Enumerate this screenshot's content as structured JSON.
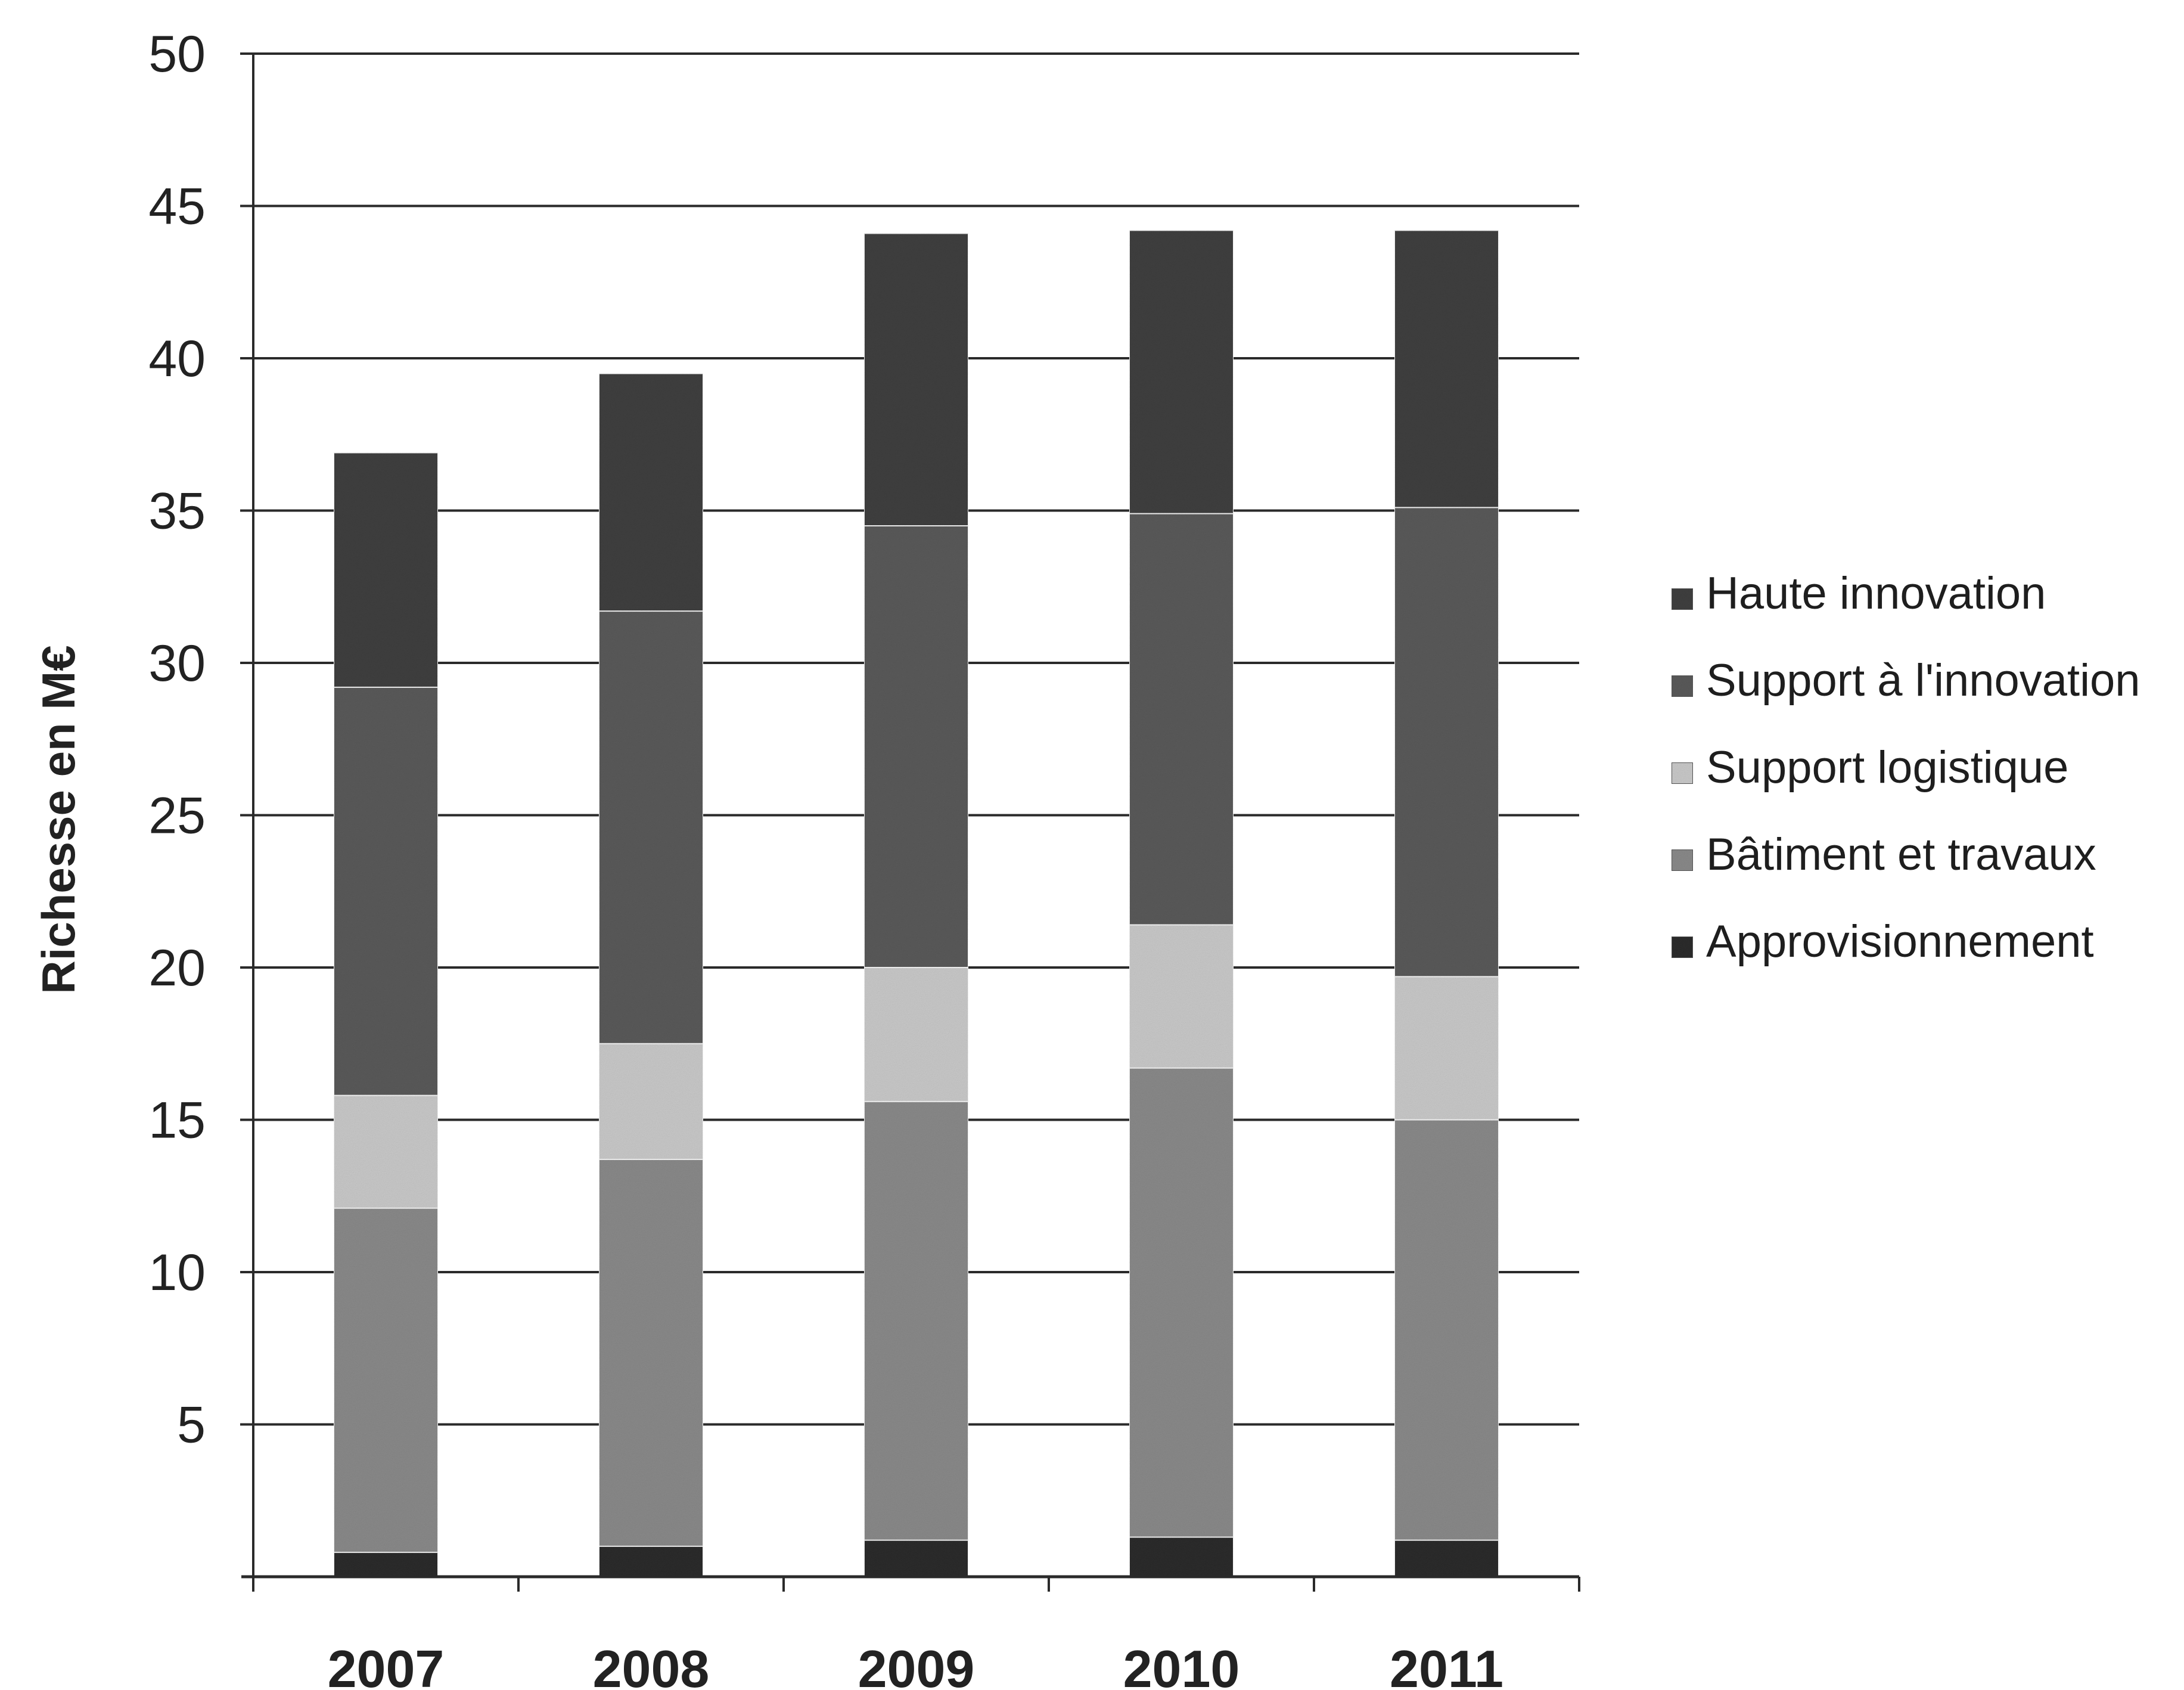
{
  "chart_data": {
    "type": "bar",
    "stacked": true,
    "title": "",
    "xlabel": "",
    "ylabel": "Richesse en M€",
    "ylim": [
      0,
      50
    ],
    "yticks": [
      5,
      10,
      15,
      20,
      25,
      30,
      35,
      40,
      45,
      50
    ],
    "grid": true,
    "legend_position": "right",
    "categories": [
      "2007",
      "2008",
      "2009",
      "2010",
      "2011"
    ],
    "series": [
      {
        "name": "Approvisionnement",
        "color": "#2b2b2b",
        "values": [
          0.8,
          1.0,
          1.2,
          1.3,
          1.2
        ]
      },
      {
        "name": "Bâtiment et travaux",
        "color": "#8a8a8a",
        "values": [
          11.3,
          12.7,
          14.4,
          15.4,
          13.8
        ]
      },
      {
        "name": "Support logistique",
        "color": "#c9c9c9",
        "values": [
          3.7,
          3.8,
          4.4,
          4.7,
          4.7
        ]
      },
      {
        "name": "Support à l'innovation",
        "color": "#5a5a5a",
        "values": [
          13.4,
          14.2,
          14.5,
          13.5,
          15.4
        ]
      },
      {
        "name": "Haute innovation",
        "color": "#404040",
        "values": [
          7.7,
          7.8,
          9.6,
          9.3,
          9.1
        ]
      }
    ]
  }
}
